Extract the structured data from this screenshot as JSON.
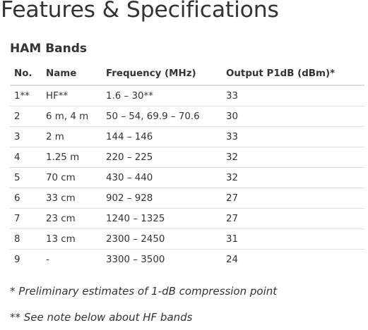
{
  "page": {
    "title": "Features & Specifications",
    "section_title": "HAM Bands"
  },
  "table": {
    "headers": [
      "No.",
      "Name",
      "Frequency (MHz)",
      "Output P1dB (dBm)*"
    ],
    "rows": [
      [
        "1**",
        "HF**",
        "1.6 – 30**",
        "33"
      ],
      [
        "2",
        "6 m, 4 m",
        "50 – 54, 69.9 – 70.6",
        "30"
      ],
      [
        "3",
        "2 m",
        "144 – 146",
        "33"
      ],
      [
        "4",
        "1.25 m",
        "220 – 225",
        "32"
      ],
      [
        "5",
        "70 cm",
        "430 – 440",
        "32"
      ],
      [
        "6",
        "33 cm",
        "902 – 928",
        "27"
      ],
      [
        "7",
        "23 cm",
        "1240 – 1325",
        "27"
      ],
      [
        "8",
        "13 cm",
        "2300 – 2450",
        "31"
      ],
      [
        "9",
        "-",
        "3300 – 3500",
        "24"
      ]
    ]
  },
  "notes": [
    "* Preliminary estimates of 1-dB compression point",
    "** See note below about HF bands"
  ]
}
